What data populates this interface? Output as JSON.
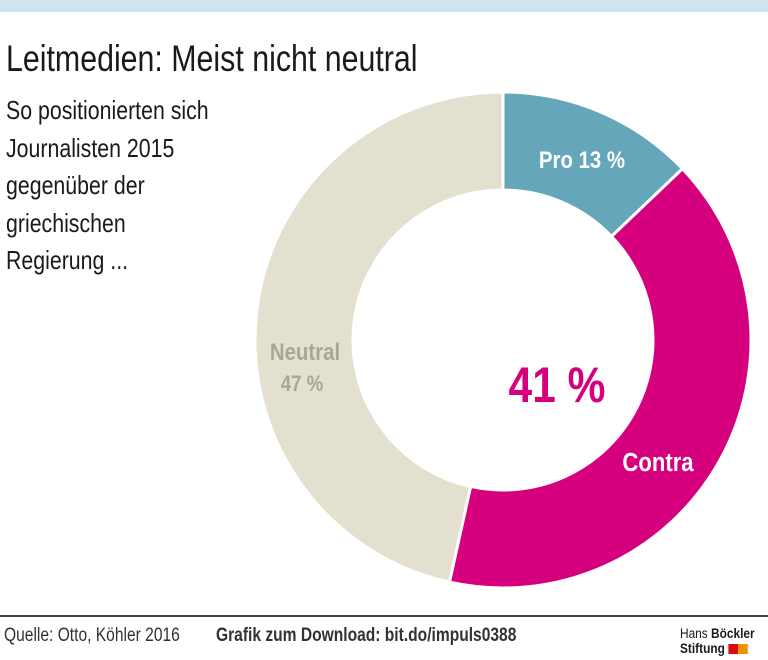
{
  "chart_data": {
    "type": "pie",
    "donut": true,
    "title": "Leitmedien: Meist nicht neutral",
    "subtitle": "So positionierten sich Journalisten 2015 gegenüber der griechischen Regierung ...",
    "categories": [
      "Pro",
      "Contra",
      "Neutral"
    ],
    "values": [
      13,
      41,
      47
    ],
    "labels": [
      "Pro  13 %",
      "Contra",
      "Neutral",
      "47 %"
    ],
    "center_label": "41 %",
    "colors": [
      "#65a6bb",
      "#d6007f",
      "#e3e0cf"
    ],
    "label_colors": [
      "#ffffff",
      "#ffffff",
      "#a8a69a"
    ],
    "center_label_color": "#d6007f"
  },
  "subtitle_lines": [
    "So positionierten sich",
    "Journalisten 2015",
    "gegenüber der",
    "griechischen",
    "Regierung ..."
  ],
  "footer": {
    "source": "Quelle: Otto, Köhler 2016",
    "download": "Grafik zum Download: bit.do/impuls0388"
  },
  "logo": {
    "line1a": "Hans",
    "line1b": "Böckler",
    "line2": "Stiftung",
    "colors": [
      "#e30613",
      "#f39200"
    ]
  }
}
